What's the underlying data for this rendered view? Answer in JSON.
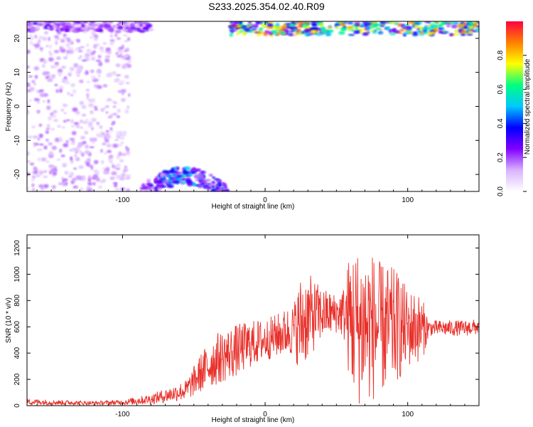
{
  "title": "S233.2025.354.02.40.R09",
  "chart_data": [
    {
      "type": "heatmap",
      "xlabel": "Height of straight line (km)",
      "ylabel": "Frequency (Hz)",
      "xlim": [
        -167,
        150
      ],
      "ylim": [
        -25,
        25
      ],
      "xticks": [
        -100,
        0,
        100
      ],
      "yticks": [
        -20,
        -10,
        0,
        10,
        20
      ],
      "colorbar": {
        "label": "Normalized spectral amplitude",
        "range": [
          0.0,
          1.0
        ],
        "ticks": [
          0.0,
          0.2,
          0.4,
          0.6,
          0.8
        ],
        "tick_labels": [
          "0.0",
          "0.2",
          "0.4",
          "0.6",
          "0.8"
        ],
        "colors": [
          "#ffffff",
          "#d9b3ff",
          "#8000ff",
          "#0000ff",
          "#00c8ff",
          "#00ff80",
          "#ffff00",
          "#ff8000",
          "#ff0040"
        ]
      },
      "features": [
        {
          "description": "scattered low-amplitude blobs",
          "x_range": [
            -167,
            -95
          ],
          "freq_range": [
            -25,
            25
          ],
          "amplitude": 0.1
        },
        {
          "description": "strong band at top edge",
          "x_range": [
            -167,
            -80
          ],
          "freq_range": [
            22,
            25
          ],
          "amplitude": 0.2
        },
        {
          "description": "arc near bottom",
          "x_range": [
            -88,
            -25
          ],
          "freq_range": [
            -25,
            -18
          ],
          "amplitude": 0.4
        },
        {
          "description": "strong band at top edge",
          "x_range": [
            -25,
            150
          ],
          "freq_range": [
            21,
            25
          ],
          "amplitude": 0.6
        }
      ]
    },
    {
      "type": "line",
      "xlabel": "Height of straight line (km)",
      "ylabel": "SNR (10 * v/v)",
      "xlim": [
        -167,
        150
      ],
      "ylim": [
        0,
        1300
      ],
      "xticks": [
        -100,
        0,
        100
      ],
      "yticks": [
        0,
        200,
        400,
        600,
        800,
        1000,
        1200
      ],
      "color": "#e8302a",
      "envelope": {
        "x": [
          -167,
          -150,
          -120,
          -100,
          -80,
          -65,
          -55,
          -45,
          -35,
          -20,
          -10,
          0,
          10,
          20,
          25,
          30,
          40,
          50,
          55,
          60,
          65,
          70,
          75,
          80,
          85,
          90,
          95,
          100,
          105,
          110,
          115,
          120,
          130,
          140,
          150
        ],
        "mean": [
          30,
          25,
          20,
          25,
          50,
          90,
          120,
          250,
          350,
          420,
          470,
          500,
          540,
          580,
          620,
          680,
          700,
          700,
          710,
          660,
          600,
          620,
          600,
          600,
          580,
          600,
          600,
          580,
          600,
          580,
          590,
          590,
          590,
          590,
          600
        ],
        "amp": [
          25,
          20,
          15,
          20,
          40,
          60,
          80,
          150,
          200,
          200,
          180,
          160,
          170,
          200,
          380,
          330,
          200,
          150,
          200,
          550,
          600,
          600,
          580,
          500,
          500,
          450,
          400,
          300,
          280,
          250,
          60,
          60,
          60,
          60,
          60
        ]
      }
    }
  ]
}
